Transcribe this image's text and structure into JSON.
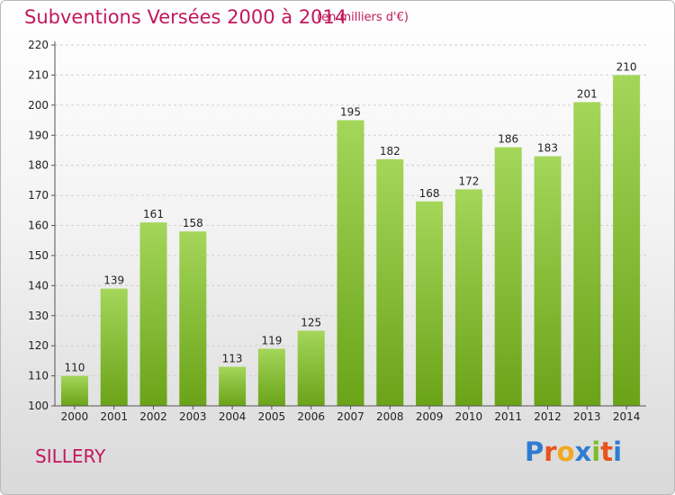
{
  "title": "Subventions Versées 2000 à 2014",
  "unit_note": "(en milliers d'€)",
  "commune": "SILLERY",
  "logo": {
    "letters": [
      "P",
      "r",
      "o",
      "x",
      "i",
      "t",
      "i"
    ],
    "colors": [
      "#2e7dd1",
      "#e8541c",
      "#f2a81d",
      "#2e7dd1",
      "#7cbd2c",
      "#e8541c",
      "#2e7dd1"
    ]
  },
  "colors": {
    "bar_top": "#a4d65a",
    "bar_bottom": "#6aa318",
    "grid": "#d0d0d0",
    "axis": "#555555",
    "title": "#c2185b"
  },
  "chart_data": {
    "type": "bar",
    "title": "Subventions Versées 2000 à 2014",
    "subtitle": "(en milliers d'€)",
    "xlabel": "",
    "ylabel": "",
    "categories": [
      "2000",
      "2001",
      "2002",
      "2003",
      "2004",
      "2005",
      "2006",
      "2007",
      "2008",
      "2009",
      "2010",
      "2011",
      "2012",
      "2013",
      "2014"
    ],
    "values": [
      110,
      139,
      161,
      158,
      113,
      119,
      125,
      195,
      182,
      168,
      172,
      186,
      183,
      201,
      210
    ],
    "ylim": [
      100,
      220
    ],
    "yticks": [
      100,
      110,
      120,
      130,
      140,
      150,
      160,
      170,
      180,
      190,
      200,
      210,
      220
    ],
    "grid": true,
    "legend": "none"
  }
}
